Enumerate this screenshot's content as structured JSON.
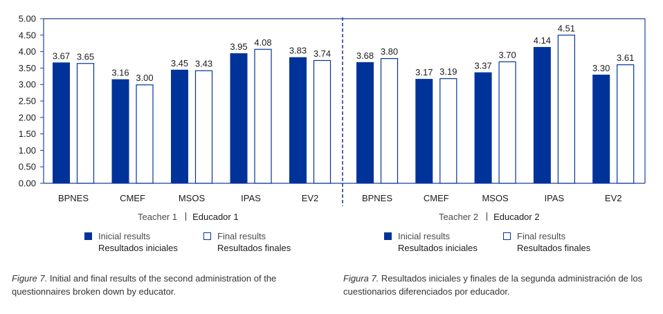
{
  "chart_data": {
    "type": "bar",
    "ylim": [
      0,
      5
    ],
    "yticks": [
      "0.00",
      "0.50",
      "1.00",
      "1.50",
      "2.00",
      "2.50",
      "3.00",
      "3.50",
      "4.00",
      "4.50",
      "5.00"
    ],
    "grid": false,
    "colors": {
      "initial": "#00339a",
      "final_fill": "#ffffff",
      "final_stroke": "#00339a",
      "axis": "#1f3f96"
    },
    "panels": [
      {
        "group_en": "Teacher 1",
        "group_es": "Educador 1",
        "categories": [
          "BPNES",
          "CMEF",
          "MSOS",
          "IPAS",
          "EV2"
        ],
        "series": [
          {
            "name": "Inicial results / Resultados iniciales",
            "values": [
              3.67,
              3.16,
              3.45,
              3.95,
              3.83
            ]
          },
          {
            "name": "Final results / Resultados finales",
            "values": [
              3.65,
              3.0,
              3.43,
              4.08,
              3.74
            ]
          }
        ]
      },
      {
        "group_en": "Teacher 2",
        "group_es": "Educador 2",
        "categories": [
          "BPNES",
          "CMEF",
          "MSOS",
          "IPAS",
          "EV2"
        ],
        "series": [
          {
            "name": "Inicial results / Resultados iniciales",
            "values": [
              3.68,
              3.17,
              3.37,
              4.14,
              3.3
            ]
          },
          {
            "name": "Final results / Resultados finales",
            "values": [
              3.8,
              3.19,
              3.7,
              4.51,
              3.61
            ]
          }
        ]
      }
    ],
    "legend": {
      "initial_en": "Inicial results",
      "initial_es": "Resultados iniciales",
      "final_en": "Final results",
      "final_es": "Resultados finales"
    },
    "title": "",
    "xlabel": "",
    "ylabel": ""
  },
  "captions": {
    "en_label": "Figure 7.",
    "en_text": " Initial and final results of the second administration of the questionnaires broken down by educator.",
    "es_label": "Figura 7.",
    "es_text": " Resultados iniciales y finales de la segunda administración de los cuestionarios diferenciados por educador."
  }
}
